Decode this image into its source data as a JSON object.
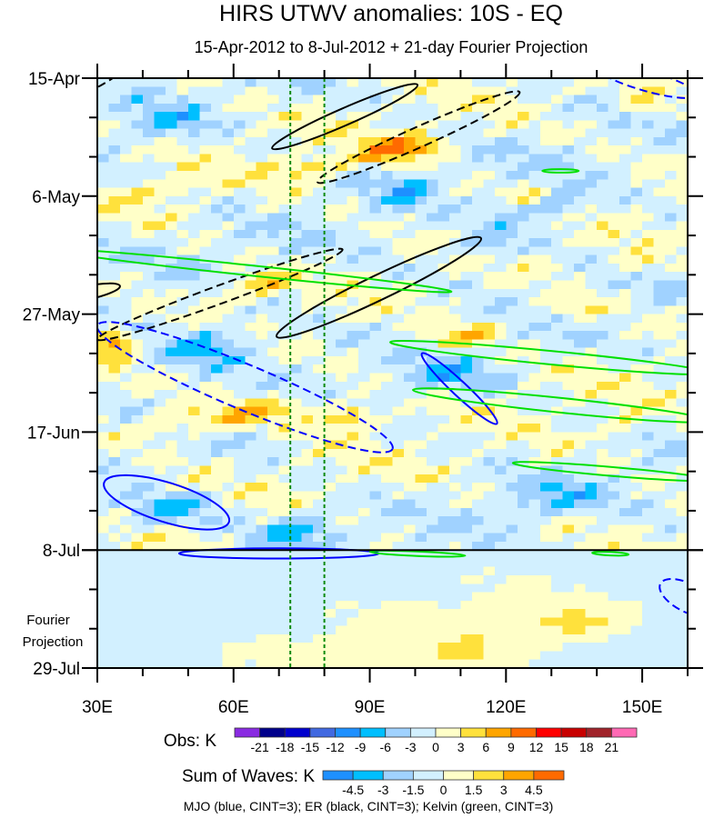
{
  "chart_data": {
    "type": "heatmap",
    "title": "HIRS UTWV anomalies: 10S - EQ",
    "subtitle": "15-Apr-2012 to 8-Jul-2012 + 21-day Fourier Projection",
    "xlim": [
      30,
      160
    ],
    "x_ticks": [
      {
        "value": 30,
        "label": "30E"
      },
      {
        "value": 60,
        "label": "60E"
      },
      {
        "value": 90,
        "label": "90E"
      },
      {
        "value": 120,
        "label": "120E"
      },
      {
        "value": 150,
        "label": "150E"
      }
    ],
    "x_minor_step": 10,
    "ylim_days": [
      0,
      105
    ],
    "y_ticks": [
      {
        "day": 0,
        "label": "15-Apr"
      },
      {
        "day": 21,
        "label": "6-May"
      },
      {
        "day": 42,
        "label": "27-May"
      },
      {
        "day": 63,
        "label": "17-Jun"
      },
      {
        "day": 84,
        "label": "8-Jul"
      },
      {
        "day": 105,
        "label": "29-Jul"
      }
    ],
    "y_minor_step": 7,
    "projection_label": [
      "Fourier",
      "Projection"
    ],
    "observation_end_day": 84,
    "reference_longitudes": [
      72.5,
      80
    ],
    "obs_colorbar": {
      "label": "Obs: K",
      "levels": [
        -21,
        -18,
        -15,
        -12,
        -9,
        -6,
        -3,
        0,
        3,
        6,
        9,
        12,
        15,
        18,
        21
      ],
      "colors": [
        "#8a2be2",
        "#00008b",
        "#0000cd",
        "#4169e1",
        "#1e90ff",
        "#00bfff",
        "#a0d2ff",
        "#d2f0ff",
        "#ffffc8",
        "#ffe13c",
        "#ffa500",
        "#ff6a00",
        "#ff0000",
        "#c80000",
        "#a0232a",
        "#ff69b4"
      ]
    },
    "waves_colorbar": {
      "label": "Sum of Waves: K",
      "levels": [
        -4.5,
        -3,
        -1.5,
        0,
        1.5,
        3,
        4.5
      ],
      "colors": [
        "#1e90ff",
        "#00bfff",
        "#a0d2ff",
        "#d2f0ff",
        "#ffffc8",
        "#ffe13c",
        "#ffa500",
        "#ff6a00"
      ]
    },
    "obs_anomaly_features": [
      {
        "lon": 97,
        "day": 12.5,
        "amp": 9,
        "sl": 9,
        "sd": 2.2
      },
      {
        "lon": 78,
        "day": 16,
        "amp": 6,
        "sl": 7,
        "sd": 2
      },
      {
        "lon": 45,
        "day": 20,
        "amp": 3,
        "sl": 10,
        "sd": 2
      },
      {
        "lon": 97,
        "day": 20,
        "amp": -5,
        "sl": 6,
        "sd": 2.5
      },
      {
        "lon": 45,
        "day": 8,
        "amp": -5,
        "sl": 8,
        "sd": 3
      },
      {
        "lon": 130,
        "day": 23,
        "amp": -6,
        "sl": 9,
        "sd": 3
      },
      {
        "lon": 125,
        "day": 21,
        "amp": 4,
        "sl": 4,
        "sd": 2
      },
      {
        "lon": 115,
        "day": 30,
        "amp": -5,
        "sl": 8,
        "sd": 3
      },
      {
        "lon": 65,
        "day": 37,
        "amp": 6,
        "sl": 9,
        "sd": 2
      },
      {
        "lon": 34,
        "day": 47,
        "amp": 9,
        "sl": 4,
        "sd": 2
      },
      {
        "lon": 55,
        "day": 48,
        "amp": -7,
        "sl": 12,
        "sd": 4
      },
      {
        "lon": 110,
        "day": 46,
        "amp": 6,
        "sl": 9,
        "sd": 2
      },
      {
        "lon": 135,
        "day": 41,
        "amp": 5,
        "sl": 7,
        "sd": 1.8
      },
      {
        "lon": 150,
        "day": 33,
        "amp": 4,
        "sl": 6,
        "sd": 2
      },
      {
        "lon": 105,
        "day": 53,
        "amp": -5,
        "sl": 10,
        "sd": 3
      },
      {
        "lon": 60,
        "day": 60,
        "amp": 7,
        "sl": 22,
        "sd": 2.5
      },
      {
        "lon": 86,
        "day": 60.5,
        "amp": 9,
        "sl": 6,
        "sd": 1.8
      },
      {
        "lon": 145,
        "day": 62,
        "amp": 4,
        "sl": 6,
        "sd": 2
      },
      {
        "lon": 45,
        "day": 77,
        "amp": -6,
        "sl": 12,
        "sd": 3
      },
      {
        "lon": 75,
        "day": 80,
        "amp": -7,
        "sl": 8,
        "sd": 3
      },
      {
        "lon": 150,
        "day": 5,
        "amp": 5,
        "sl": 5,
        "sd": 2
      },
      {
        "lon": 130,
        "day": 75,
        "amp": -5,
        "sl": 10,
        "sd": 3
      }
    ],
    "projection_features": [
      {
        "lon": 105,
        "day": 100,
        "amp": 1.3,
        "sl": 40,
        "sd": 7
      },
      {
        "lon": 135,
        "day": 97,
        "amp": 1.8,
        "sl": 10,
        "sd": 3
      },
      {
        "lon": 110,
        "day": 102,
        "amp": 1.8,
        "sl": 6,
        "sd": 2.5
      }
    ],
    "contours": [
      {
        "wave": "ER",
        "color": "#000000",
        "style": "solid",
        "p1": [
          68.5,
          12.5
        ],
        "p2": [
          100.5,
          1.2
        ],
        "width_days": 1.5
      },
      {
        "wave": "ER",
        "color": "#000000",
        "style": "dashed",
        "p1": [
          78.5,
          18.5
        ],
        "p2": [
          123,
          2.5
        ],
        "width_days": 1.8
      },
      {
        "wave": "ER",
        "color": "#000000",
        "style": "solid",
        "p1": [
          69.5,
          46
        ],
        "p2": [
          114.5,
          28.5
        ],
        "width_days": 2.2
      },
      {
        "wave": "ER",
        "color": "#000000",
        "style": "dashed",
        "p1": [
          30,
          46.5
        ],
        "p2": [
          84,
          30.5
        ],
        "width_days": 1.6
      },
      {
        "wave": "ER",
        "color": "#000000",
        "style": "solid",
        "p1": [
          20,
          39.5
        ],
        "p2": [
          35,
          37
        ],
        "width_days": 1.2
      },
      {
        "wave": "ER",
        "color": "#000000",
        "style": "dashed",
        "p1": [
          25,
          3
        ],
        "p2": [
          36,
          -2
        ],
        "width_days": 0.8
      },
      {
        "wave": "MJO",
        "color": "#0000ff",
        "style": "dashed",
        "p1": [
          30,
          44
        ],
        "p2": [
          95,
          66
        ],
        "width_days": 4
      },
      {
        "wave": "MJO",
        "color": "#0000ff",
        "style": "solid",
        "p1": [
          101.5,
          49
        ],
        "p2": [
          118,
          61.5
        ],
        "width_days": 1.3
      },
      {
        "wave": "MJO",
        "color": "#0000ff",
        "style": "solid",
        "p1": [
          31.5,
          72
        ],
        "p2": [
          59,
          79
        ],
        "width_days": 3.5
      },
      {
        "wave": "MJO",
        "color": "#0000ff",
        "style": "dashed",
        "p1": [
          140,
          -2
        ],
        "p2": [
          162,
          3
        ],
        "width_days": 1.8
      },
      {
        "wave": "MJO",
        "color": "#0000ff",
        "style": "solid",
        "p1": [
          48,
          84.6
        ],
        "p2": [
          92,
          84.6
        ],
        "width_days": 0.9
      },
      {
        "wave": "MJO",
        "color": "#0000ff",
        "style": "dashed",
        "p1": [
          154,
          90
        ],
        "p2": [
          166,
          95
        ],
        "width_days": 2.5
      },
      {
        "wave": "Kelvin",
        "color": "#00e000",
        "style": "solid",
        "p1": [
          20,
          30.5
        ],
        "p2": [
          108,
          38
        ],
        "width_days": 0.9
      },
      {
        "wave": "Kelvin",
        "color": "#00e000",
        "style": "solid",
        "p1": [
          94.5,
          47
        ],
        "p2": [
          165,
          52.5
        ],
        "width_days": 1.2
      },
      {
        "wave": "Kelvin",
        "color": "#00e000",
        "style": "solid",
        "p1": [
          99.5,
          55.5
        ],
        "p2": [
          165,
          61
        ],
        "width_days": 1.3
      },
      {
        "wave": "Kelvin",
        "color": "#00e000",
        "style": "solid",
        "p1": [
          121.5,
          68.5
        ],
        "p2": [
          165,
          71.5
        ],
        "width_days": 0.8
      },
      {
        "wave": "Kelvin",
        "color": "#00e000",
        "style": "solid",
        "p1": [
          90,
          84.3
        ],
        "p2": [
          111,
          85
        ],
        "width_days": 0.4
      },
      {
        "wave": "Kelvin",
        "color": "#00e000",
        "style": "solid",
        "p1": [
          139,
          84.5
        ],
        "p2": [
          147,
          84.8
        ],
        "width_days": 0.3
      },
      {
        "wave": "Kelvin",
        "color": "#00e000",
        "style": "solid",
        "p1": [
          128,
          16.5
        ],
        "p2": [
          136,
          16.5
        ],
        "width_days": 0.3
      }
    ],
    "footer": "MJO (blue, CINT=3); ER (black, CINT=3); Kelvin (green, CINT=3)"
  }
}
